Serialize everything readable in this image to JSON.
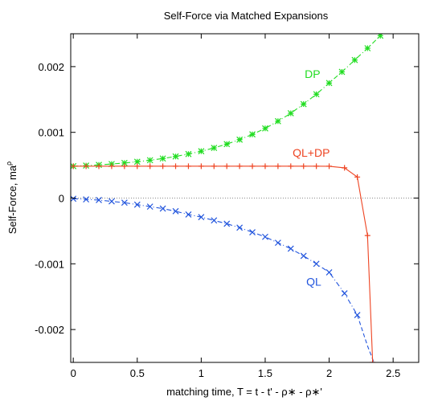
{
  "chart_data": {
    "type": "line",
    "title": "Self-Force via Matched Expansions",
    "xlabel": "matching time, T = t - t' - ρ∗ - ρ∗'",
    "ylabel": "Self-Force, ma",
    "ylabel_superscript": "ρ",
    "xlim": [
      -0.02,
      2.7
    ],
    "ylim": [
      -0.0025,
      0.0025
    ],
    "x_ticks": [
      {
        "value": 0,
        "label": "0"
      },
      {
        "value": 0.5,
        "label": "0.5"
      },
      {
        "value": 1,
        "label": "1"
      },
      {
        "value": 1.5,
        "label": "1.5"
      },
      {
        "value": 2,
        "label": "2"
      },
      {
        "value": 2.5,
        "label": "2.5"
      }
    ],
    "y_ticks": [
      {
        "value": 0.002,
        "label": "0.002"
      },
      {
        "value": 0.001,
        "label": "0.001"
      },
      {
        "value": 0,
        "label": "0"
      },
      {
        "value": -0.001,
        "label": "-0.001"
      },
      {
        "value": -0.002,
        "label": "-0.002"
      }
    ],
    "zero_line": true,
    "grid": false,
    "series": [
      {
        "name": "DP",
        "color": "#22dd22",
        "marker": "star",
        "line_style": "dash-dot",
        "label_at": {
          "x": 1.87,
          "y": 0.00183
        },
        "x": [
          0,
          0.1,
          0.2,
          0.3,
          0.4,
          0.5,
          0.6,
          0.7,
          0.8,
          0.9,
          1.0,
          1.1,
          1.2,
          1.3,
          1.4,
          1.5,
          1.6,
          1.7,
          1.8,
          1.9,
          2.0,
          2.1,
          2.2,
          2.3,
          2.4
        ],
        "y": [
          0.000485,
          0.000494,
          0.000505,
          0.000518,
          0.000534,
          0.000553,
          0.000576,
          0.000602,
          0.000633,
          0.00067,
          0.000713,
          0.000763,
          0.000821,
          0.000889,
          0.000969,
          0.00106,
          0.00117,
          0.00129,
          0.00143,
          0.00158,
          0.00175,
          0.00192,
          0.0021,
          0.00228,
          0.00247
        ]
      },
      {
        "name": "QL+DP",
        "color": "#ee4422",
        "marker": "plus",
        "line_style": "solid",
        "label_at": {
          "x": 1.86,
          "y": 0.00063
        },
        "x": [
          0,
          0.1,
          0.2,
          0.3,
          0.4,
          0.5,
          0.6,
          0.7,
          0.8,
          0.9,
          1.0,
          1.1,
          1.2,
          1.3,
          1.4,
          1.5,
          1.6,
          1.7,
          1.8,
          1.9,
          2.0,
          2.12,
          2.22,
          2.3,
          2.34
        ],
        "y": [
          0.000485,
          0.000485,
          0.000485,
          0.000485,
          0.000485,
          0.000485,
          0.000485,
          0.000485,
          0.000485,
          0.000485,
          0.000485,
          0.000485,
          0.000485,
          0.000485,
          0.000485,
          0.000485,
          0.000485,
          0.000485,
          0.000485,
          0.000485,
          0.000484,
          0.00046,
          0.00032,
          -0.00057,
          -0.0025
        ]
      },
      {
        "name": "QL",
        "color": "#2255dd",
        "marker": "x",
        "line_style": "dash-dot",
        "label_at": {
          "x": 1.88,
          "y": -0.00133
        },
        "x": [
          0,
          0.1,
          0.2,
          0.3,
          0.4,
          0.5,
          0.6,
          0.7,
          0.8,
          0.9,
          1.0,
          1.1,
          1.2,
          1.3,
          1.4,
          1.5,
          1.6,
          1.7,
          1.8,
          1.9,
          2.0,
          2.12,
          2.22
        ],
        "y": [
          -1e-05,
          -2e-05,
          -3e-05,
          -5e-05,
          -7e-05,
          -0.0001,
          -0.00013,
          -0.00016,
          -0.0002,
          -0.00025,
          -0.00029,
          -0.00034,
          -0.00039,
          -0.00045,
          -0.00052,
          -0.00059,
          -0.00068,
          -0.00077,
          -0.00088,
          -0.001,
          -0.00113,
          -0.00145,
          -0.00178
        ]
      }
    ],
    "ql_tail": {
      "color": "#2255dd",
      "line_style": "dashed",
      "x": [
        2.22,
        2.3,
        2.35
      ],
      "y": [
        -0.00178,
        -0.00225,
        -0.0025
      ]
    }
  }
}
